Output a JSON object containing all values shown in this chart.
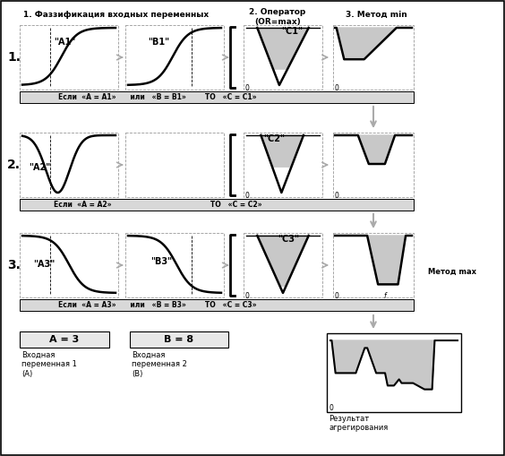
{
  "bg_color": "#ffffff",
  "fill_color": "#c8c8c8",
  "line_color": "#000000",
  "arrow_color": "#aaaaaa",
  "bar_color": "#d8d8d8",
  "header1": "1. Фаззификация входных переменных",
  "header2": "2. Оператор\n(OR=max)",
  "header3": "3. Метод min",
  "rule1": "Если  «A = A1»      или   «B = B1»        ТО   «C = C1»",
  "rule2": "Если  «A = A2»                                          ТО   «C = C2»",
  "rule3": "Если  «A = A3»      или   «B = B3»        ТО   «C = C3»",
  "label_A1": "\"A1\"",
  "label_A2": "\"A2\"",
  "label_A3": "\"A3\"",
  "label_B1": "\"B1\"",
  "label_B3": "\"B3\"",
  "label_C1": "\"C1\"",
  "label_C2": "\"C2\"",
  "label_C3": "\"C3\"",
  "box_input1": "A = 3",
  "box_input2": "B = 8",
  "caption_input1": "Входная\nпеременная 1\n(A)",
  "caption_input2": "Входная\nпеременная 2\n(B)",
  "caption_result": "Результат\nагрегирования",
  "label_maxmethod": "Метод max",
  "row_label_1": "1.",
  "row_label_2": "2.",
  "row_label_3": "3."
}
